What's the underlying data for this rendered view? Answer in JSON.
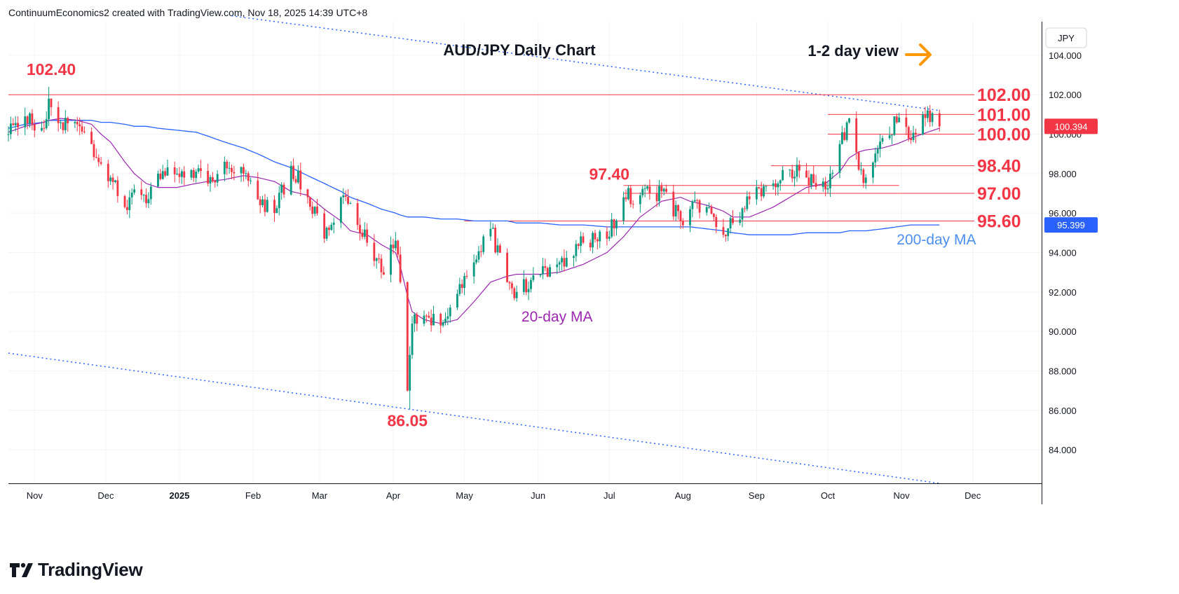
{
  "header": {
    "attribution": "ContinuumEconomics2 created with TradingView.com, Nov 18, 2025 14:39 UTC+8"
  },
  "footer": {
    "brand": "TradingView"
  },
  "colors": {
    "bull": "#089981",
    "bear": "#f23645",
    "ma20": "#9c27b0",
    "ma200": "#2962ff",
    "level": "#f23645",
    "trendline": "#2962ff",
    "arrow": "#ff9800",
    "grid": "#f0f3fa",
    "axis_text": "#131722"
  },
  "chart_data": {
    "type": "candlestick",
    "title": "AUD/JPY Daily Chart",
    "view_label": "1-2 day view",
    "currency": "JPY",
    "ylim": [
      82.3,
      105.7
    ],
    "y_ticks": [
      "84.000",
      "86.000",
      "88.000",
      "90.000",
      "92.000",
      "94.000",
      "96.000",
      "98.000",
      "100.000",
      "102.000",
      "104.000"
    ],
    "x_ticks": [
      "Nov",
      "Dec",
      "2025",
      "Feb",
      "Mar",
      "Apr",
      "May",
      "Jun",
      "Jul",
      "Aug",
      "Sep",
      "Oct",
      "Nov",
      "Dec"
    ],
    "x_tick_dates": [
      "2024-11-01",
      "2024-12-01",
      "2025-01-01",
      "2025-02-01",
      "2025-03-01",
      "2025-04-01",
      "2025-05-01",
      "2025-06-01",
      "2025-07-01",
      "2025-08-01",
      "2025-09-01",
      "2025-10-01",
      "2025-11-01",
      "2025-12-01"
    ],
    "x_range": [
      "2024-10-21",
      "2025-12-30"
    ],
    "last_price": "100.394",
    "ma200_label_value": "95.399",
    "levels": [
      {
        "label": "102.00",
        "value": 102.0,
        "from": "2024-10-21"
      },
      {
        "label": "101.00",
        "value": 101.0,
        "from": "2025-10-01"
      },
      {
        "label": "100.00",
        "value": 100.0,
        "from": "2025-10-01"
      },
      {
        "label": "98.40",
        "value": 98.4,
        "from": "2025-09-07"
      },
      {
        "label": "97.00",
        "value": 97.0,
        "from": "2025-07-07"
      },
      {
        "label": "95.60",
        "value": 95.6,
        "from": "2025-05-01"
      }
    ],
    "line_97_4": {
      "value": 97.4,
      "from": "2025-07-07",
      "to": "2025-10-31"
    },
    "annotations": [
      {
        "text": "102.40",
        "x": "2024-11-08",
        "y": 103.0
      },
      {
        "text": "97.40",
        "x": "2025-07-01",
        "y": 97.7
      },
      {
        "text": "86.05",
        "x": "2025-04-07",
        "y": 85.2
      },
      {
        "text": "20-day MA",
        "x": "2025-05-25",
        "y": 90.5
      },
      {
        "text": "200-day MA",
        "x": "2025-10-30",
        "y": 94.4
      }
    ],
    "trendlines": [
      {
        "x": [
          "2025-01-23",
          "2025-11-17"
        ],
        "y": [
          106.0,
          101.2
        ]
      },
      {
        "x": [
          "2024-10-21",
          "2025-11-17"
        ],
        "y": [
          88.9,
          82.3
        ]
      }
    ],
    "ohlc_anchors": {
      "dates": [
        "2024-10-21",
        "2024-10-28",
        "2024-11-05",
        "2024-11-07",
        "2024-11-12",
        "2024-11-19",
        "2024-11-25",
        "2024-11-29",
        "2024-12-03",
        "2024-12-09",
        "2024-12-13",
        "2024-12-18",
        "2024-12-23",
        "2024-12-31",
        "2025-01-08",
        "2025-01-13",
        "2025-01-20",
        "2025-01-28",
        "2025-02-03",
        "2025-02-10",
        "2025-02-17",
        "2025-02-24",
        "2025-03-03",
        "2025-03-10",
        "2025-03-14",
        "2025-03-21",
        "2025-03-27",
        "2025-04-02",
        "2025-04-04",
        "2025-04-07",
        "2025-04-09",
        "2025-04-14",
        "2025-04-21",
        "2025-04-28",
        "2025-05-05",
        "2025-05-12",
        "2025-05-19",
        "2025-05-23",
        "2025-06-02",
        "2025-06-10",
        "2025-06-20",
        "2025-06-30",
        "2025-07-07",
        "2025-07-14",
        "2025-07-23",
        "2025-07-31",
        "2025-08-04",
        "2025-08-11",
        "2025-08-18",
        "2025-08-22",
        "2025-08-29",
        "2025-09-08",
        "2025-09-15",
        "2025-09-22",
        "2025-09-30",
        "2025-10-06",
        "2025-10-10",
        "2025-10-14",
        "2025-10-17",
        "2025-10-24",
        "2025-10-30",
        "2025-11-05",
        "2025-11-12",
        "2025-11-17"
      ],
      "close": [
        100.0,
        100.9,
        100.3,
        101.8,
        100.6,
        100.5,
        99.5,
        98.5,
        97.8,
        96.3,
        97.2,
        96.5,
        98.0,
        98.0,
        98.1,
        97.5,
        98.6,
        98.0,
        96.7,
        96.0,
        98.4,
        96.8,
        94.7,
        96.8,
        96.5,
        94.5,
        93.0,
        94.6,
        92.5,
        87.0,
        90.4,
        90.8,
        90.3,
        91.9,
        93.5,
        95.2,
        92.5,
        92.0,
        92.9,
        93.5,
        94.5,
        94.7,
        96.8,
        96.9,
        97.1,
        95.6,
        96.2,
        96.3,
        94.9,
        95.5,
        96.7,
        97.5,
        98.2,
        97.8,
        97.2,
        99.5,
        100.8,
        98.2,
        97.8,
        99.8,
        100.6,
        99.7,
        101.2,
        100.394
      ],
      "ma20": [
        100.1,
        100.4,
        100.6,
        100.7,
        100.8,
        100.7,
        100.5,
        100.0,
        99.6,
        98.6,
        98.0,
        97.5,
        97.3,
        97.3,
        97.5,
        97.6,
        97.7,
        97.9,
        97.8,
        97.6,
        97.1,
        96.9,
        96.2,
        95.6,
        95.1,
        94.9,
        94.4,
        94.0,
        93.3,
        91.8,
        91.0,
        90.6,
        90.4,
        90.6,
        91.5,
        92.5,
        92.8,
        92.9,
        92.9,
        93.0,
        93.4,
        94.0,
        94.8,
        95.8,
        96.6,
        96.8,
        96.6,
        96.4,
        96.1,
        95.8,
        95.8,
        96.3,
        96.8,
        97.3,
        97.5,
        98.1,
        98.8,
        99.1,
        99.2,
        99.3,
        99.5,
        99.8,
        100.1,
        100.3
      ],
      "ma200": [
        100.3,
        100.5,
        100.6,
        100.7,
        100.7,
        100.7,
        100.7,
        100.6,
        100.6,
        100.5,
        100.4,
        100.4,
        100.3,
        100.2,
        100.1,
        99.9,
        99.6,
        99.3,
        99.0,
        98.6,
        98.3,
        97.9,
        97.5,
        97.1,
        96.8,
        96.5,
        96.2,
        96.0,
        95.9,
        95.8,
        95.8,
        95.8,
        95.7,
        95.7,
        95.6,
        95.6,
        95.6,
        95.5,
        95.5,
        95.4,
        95.4,
        95.3,
        95.3,
        95.3,
        95.3,
        95.3,
        95.3,
        95.2,
        95.1,
        95.0,
        94.9,
        94.9,
        94.9,
        95.0,
        95.0,
        95.0,
        95.1,
        95.1,
        95.1,
        95.2,
        95.3,
        95.4,
        95.4,
        95.4
      ]
    }
  }
}
